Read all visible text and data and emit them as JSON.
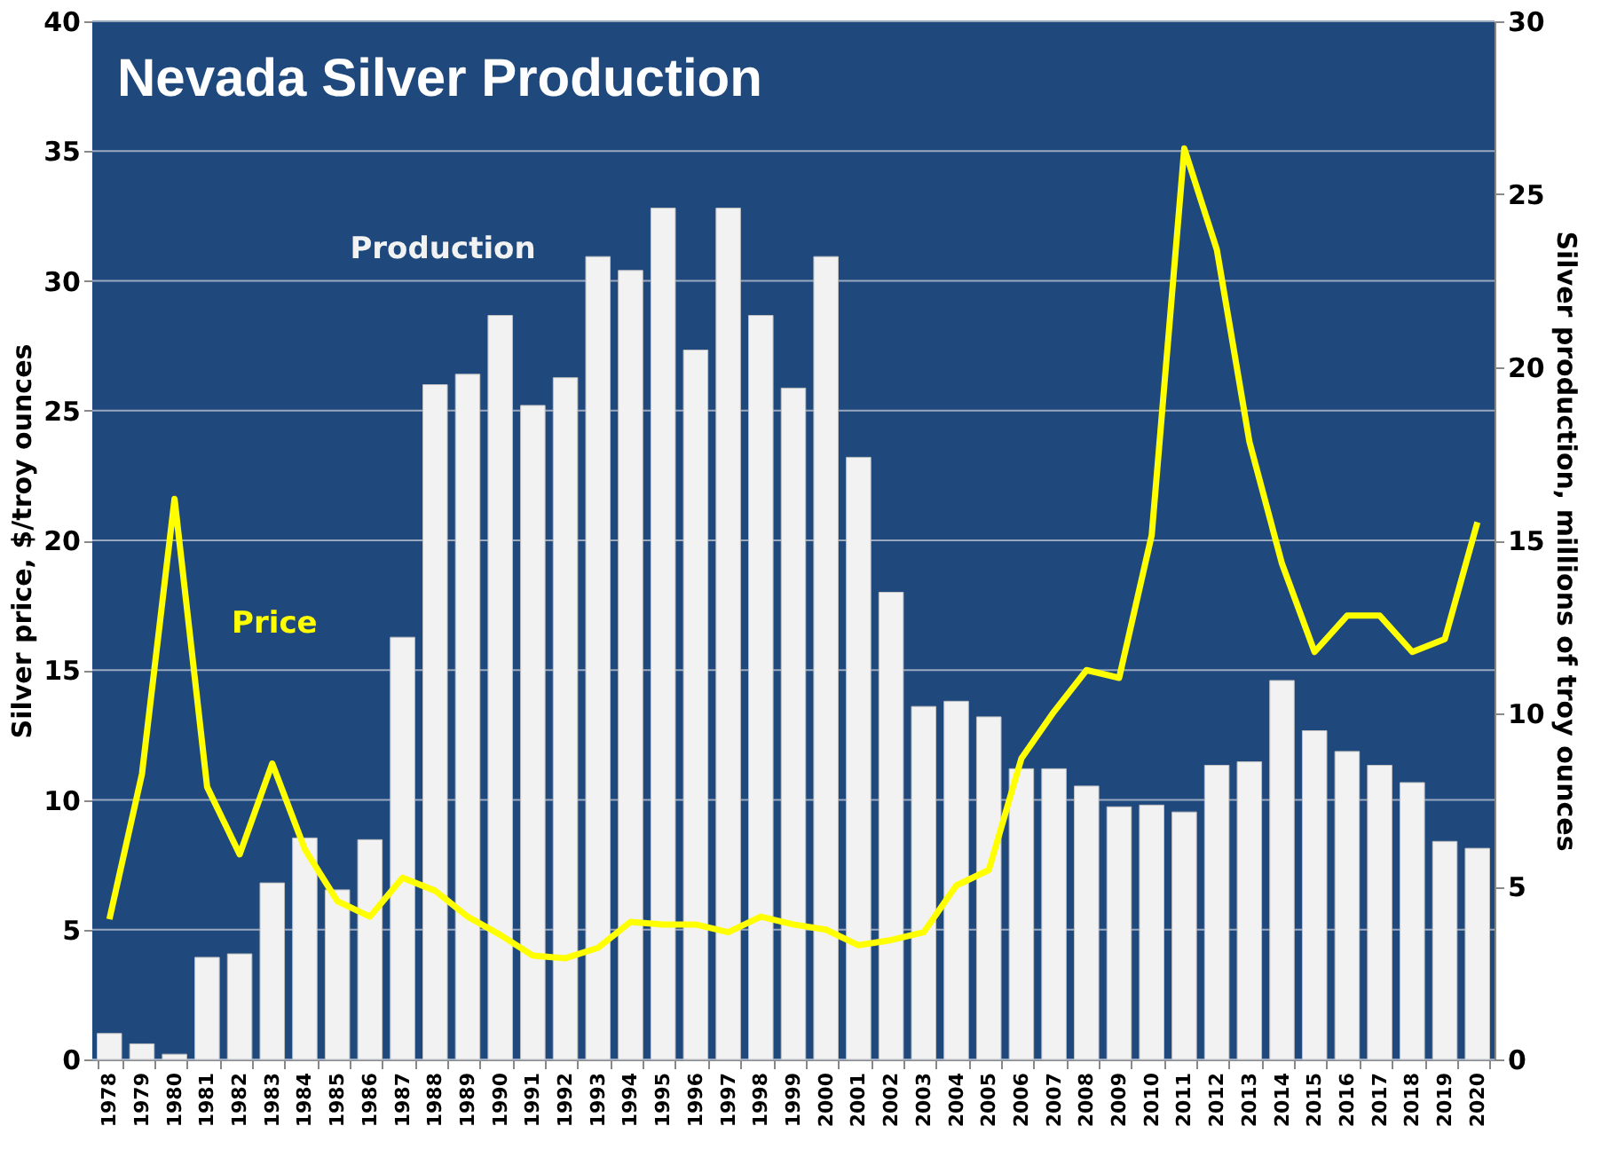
{
  "chart_data": {
    "type": "bar",
    "title": "Nevada Silver Production",
    "ylabel": "Silver price, $/troy ounces",
    "y2label": "Silver production, millions of troy ounces",
    "categories": [
      "1978",
      "1979",
      "1980",
      "1981",
      "1982",
      "1983",
      "1984",
      "1985",
      "1986",
      "1987",
      "1988",
      "1989",
      "1990",
      "1991",
      "1992",
      "1993",
      "1994",
      "1995",
      "1996",
      "1997",
      "1998",
      "1999",
      "2000",
      "2001",
      "2002",
      "2003",
      "2004",
      "2005",
      "2006",
      "2007",
      "2008",
      "2009",
      "2010",
      "2011",
      "2012",
      "2013",
      "2014",
      "2015",
      "2016",
      "2017",
      "2018",
      "2019",
      "2020"
    ],
    "series": [
      {
        "name": "Production",
        "axis": "y2",
        "color": "#f2f2f2",
        "values": [
          0.75,
          0.45,
          0.15,
          2.95,
          3.05,
          5.1,
          6.4,
          4.9,
          6.35,
          12.2,
          19.5,
          19.8,
          21.5,
          18.9,
          19.7,
          23.2,
          22.8,
          24.6,
          20.5,
          24.6,
          21.5,
          19.4,
          23.2,
          17.4,
          13.5,
          10.2,
          10.35,
          9.9,
          8.4,
          8.4,
          7.9,
          7.3,
          7.35,
          7.15,
          8.5,
          8.6,
          10.95,
          9.5,
          8.9,
          8.5,
          8.0,
          6.3,
          6.1
        ]
      },
      {
        "name": "Price",
        "type": "line",
        "axis": "y",
        "color": "#ffff00",
        "values": [
          5.4,
          11.0,
          21.6,
          10.5,
          7.9,
          11.4,
          8.1,
          6.1,
          5.5,
          7.0,
          6.5,
          5.5,
          4.8,
          4.0,
          3.9,
          4.3,
          5.3,
          5.2,
          5.2,
          4.9,
          5.5,
          5.2,
          5.0,
          4.4,
          4.6,
          4.9,
          6.7,
          7.3,
          11.6,
          13.4,
          15.0,
          14.7,
          20.2,
          35.1,
          31.2,
          23.8,
          19.1,
          15.7,
          17.1,
          17.1,
          15.7,
          16.2,
          20.7
        ]
      }
    ],
    "ylim": [
      0,
      40
    ],
    "yticks": [
      0,
      5,
      10,
      15,
      20,
      25,
      30,
      35,
      40
    ],
    "y2lim": [
      0,
      30
    ],
    "y2ticks": [
      0,
      5,
      10,
      15,
      20,
      25,
      30
    ],
    "grid": "y",
    "legend": false
  }
}
